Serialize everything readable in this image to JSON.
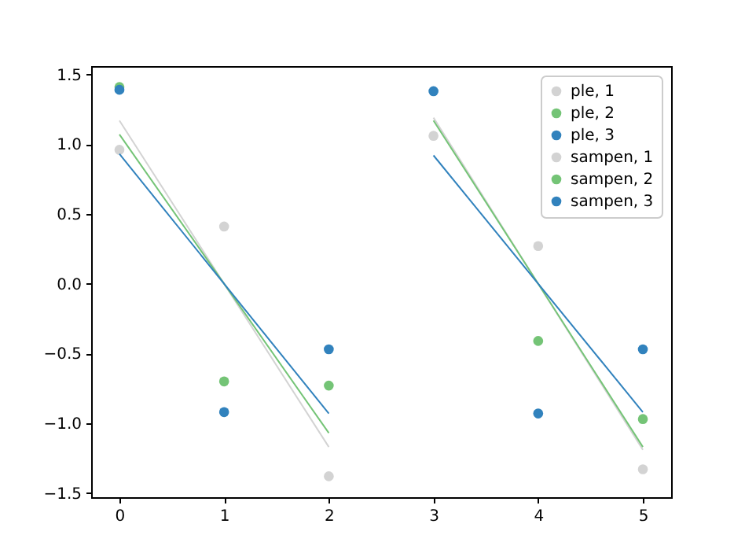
{
  "chart_data": {
    "type": "scatter",
    "legend": "top right",
    "grid": false,
    "xlim": [
      -0.27,
      5.27
    ],
    "xticks": [
      0,
      1,
      2,
      3,
      4,
      5
    ],
    "ylim": [
      -1.53,
      1.56
    ],
    "yticks": [
      {
        "value": -1.5,
        "label": "−1.5"
      },
      {
        "value": -1.0,
        "label": "−1.0"
      },
      {
        "value": -0.5,
        "label": "−0.5"
      },
      {
        "value": 0,
        "label": "0.0"
      },
      {
        "value": 0.5,
        "label": "0.5"
      },
      {
        "value": 1.0,
        "label": "1.0"
      },
      {
        "value": 1.5,
        "label": "1.5"
      }
    ],
    "series": [
      {
        "name": "ple, 1",
        "marker": "circle",
        "color": "#d3d3d3",
        "x": [
          0,
          1,
          2
        ],
        "values": [
          0.96,
          0.41,
          -1.38
        ]
      },
      {
        "name": "ple, 2",
        "marker": "circle",
        "color": "#74c476",
        "x": [
          0,
          1,
          2
        ],
        "values": [
          1.41,
          -0.7,
          -0.73
        ]
      },
      {
        "name": "ple, 3",
        "marker": "circle",
        "color": "#3182bd",
        "x": [
          0,
          1,
          2
        ],
        "values": [
          1.39,
          -0.92,
          -0.47
        ]
      },
      {
        "name": "sampen, 1",
        "marker": "circle",
        "color": "#d3d3d3",
        "x": [
          3,
          4,
          5
        ],
        "values": [
          1.06,
          0.27,
          -1.33
        ]
      },
      {
        "name": "sampen, 2",
        "marker": "circle",
        "color": "#74c476",
        "x": [
          4,
          5
        ],
        "values": [
          -0.41,
          -0.97
        ]
      },
      {
        "name": "sampen, 3",
        "marker": "circle",
        "color": "#3182bd",
        "x": [
          3,
          4,
          5
        ],
        "values": [
          1.38,
          -0.93,
          -0.47
        ]
      },
      {
        "type": "line",
        "color": "#d3d3d3",
        "x": [
          0,
          2
        ],
        "values": [
          1.17,
          -1.17
        ]
      },
      {
        "type": "line",
        "color": "#74c476",
        "x": [
          0,
          2
        ],
        "values": [
          1.07,
          -1.07
        ]
      },
      {
        "type": "line",
        "color": "#3182bd",
        "x": [
          0,
          2
        ],
        "values": [
          0.93,
          -0.93
        ]
      },
      {
        "type": "line",
        "color": "#d3d3d3",
        "x": [
          3,
          5
        ],
        "values": [
          1.19,
          -1.19
        ]
      },
      {
        "type": "line",
        "color": "#74c476",
        "x": [
          3,
          5
        ],
        "values": [
          1.17,
          -1.17
        ]
      },
      {
        "type": "line",
        "color": "#3182bd",
        "x": [
          3,
          5
        ],
        "values": [
          0.92,
          -0.92
        ]
      }
    ]
  }
}
